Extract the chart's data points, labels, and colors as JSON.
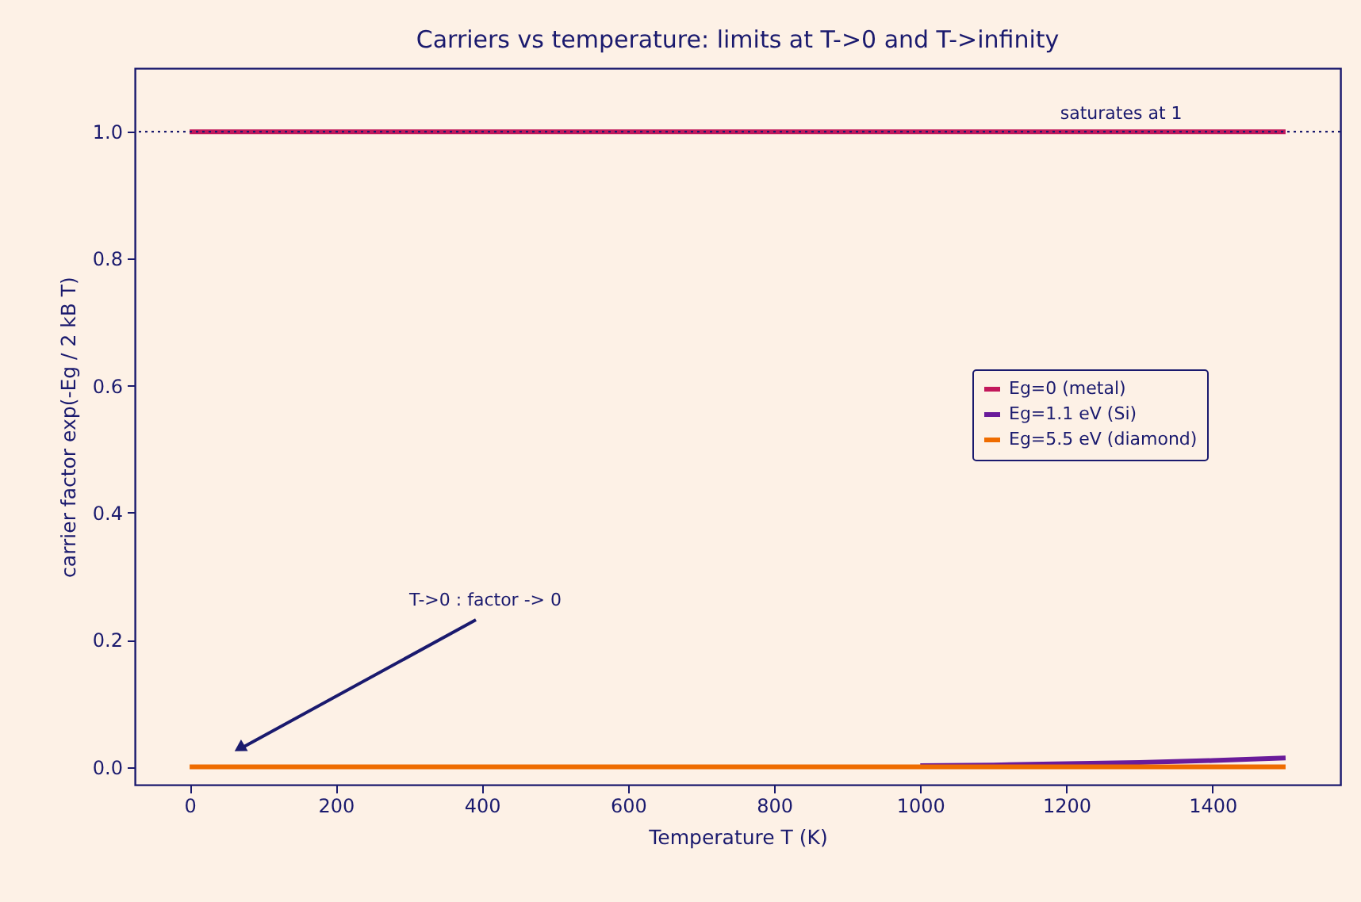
{
  "chart_data": {
    "type": "line",
    "title": "Carriers vs temperature: limits at T->0 and T->infinity",
    "xlabel": "Temperature T  (K)",
    "ylabel": "carrier factor  exp(-Eg / 2 kB T)",
    "x": [
      0,
      100,
      200,
      300,
      400,
      500,
      600,
      700,
      800,
      900,
      1000,
      1100,
      1200,
      1300,
      1400,
      1500
    ],
    "series": [
      {
        "name": "Eg=0 (metal)",
        "color": "#c2185b",
        "values": [
          1,
          1,
          1,
          1,
          1,
          1,
          1,
          1,
          1,
          1,
          1,
          1,
          1,
          1,
          1,
          1
        ]
      },
      {
        "name": "Eg=1.1 eV (Si)",
        "color": "#6a1b9a",
        "values": [
          null,
          null,
          null,
          null,
          null,
          null,
          null,
          null,
          null,
          null,
          0.002,
          0.003,
          0.005,
          0.007,
          0.01,
          0.014
        ]
      },
      {
        "name": "Eg=5.5 eV (diamond)",
        "color": "#ef6c00",
        "values": [
          0,
          0,
          0,
          0,
          0,
          0,
          0,
          0,
          0,
          0,
          0,
          0,
          0,
          0,
          0,
          0
        ]
      }
    ],
    "xlim": [
      -75,
      1575
    ],
    "ylim": [
      -0.028,
      1.1
    ],
    "xticks": [
      0,
      200,
      400,
      600,
      800,
      1000,
      1200,
      1400
    ],
    "yticks": [
      {
        "value": 0,
        "label": "0.0"
      },
      {
        "value": 0.2,
        "label": "0.2"
      },
      {
        "value": 0.4,
        "label": "0.4"
      },
      {
        "value": 0.6,
        "label": "0.6"
      },
      {
        "value": 0.8,
        "label": "0.8"
      },
      {
        "value": 1.0,
        "label": "1.0"
      }
    ],
    "ref_lines": [
      {
        "axis": "y",
        "value": 1.0,
        "color": "#1a1a6e",
        "line_style": "dotted"
      }
    ],
    "annotations": [
      {
        "text": "saturates at 1",
        "x": 1275,
        "y": 1.0
      },
      "T->0 : factor -> 0"
    ],
    "legend": "right",
    "grid": false,
    "marker": "none",
    "line_style": "solid"
  }
}
